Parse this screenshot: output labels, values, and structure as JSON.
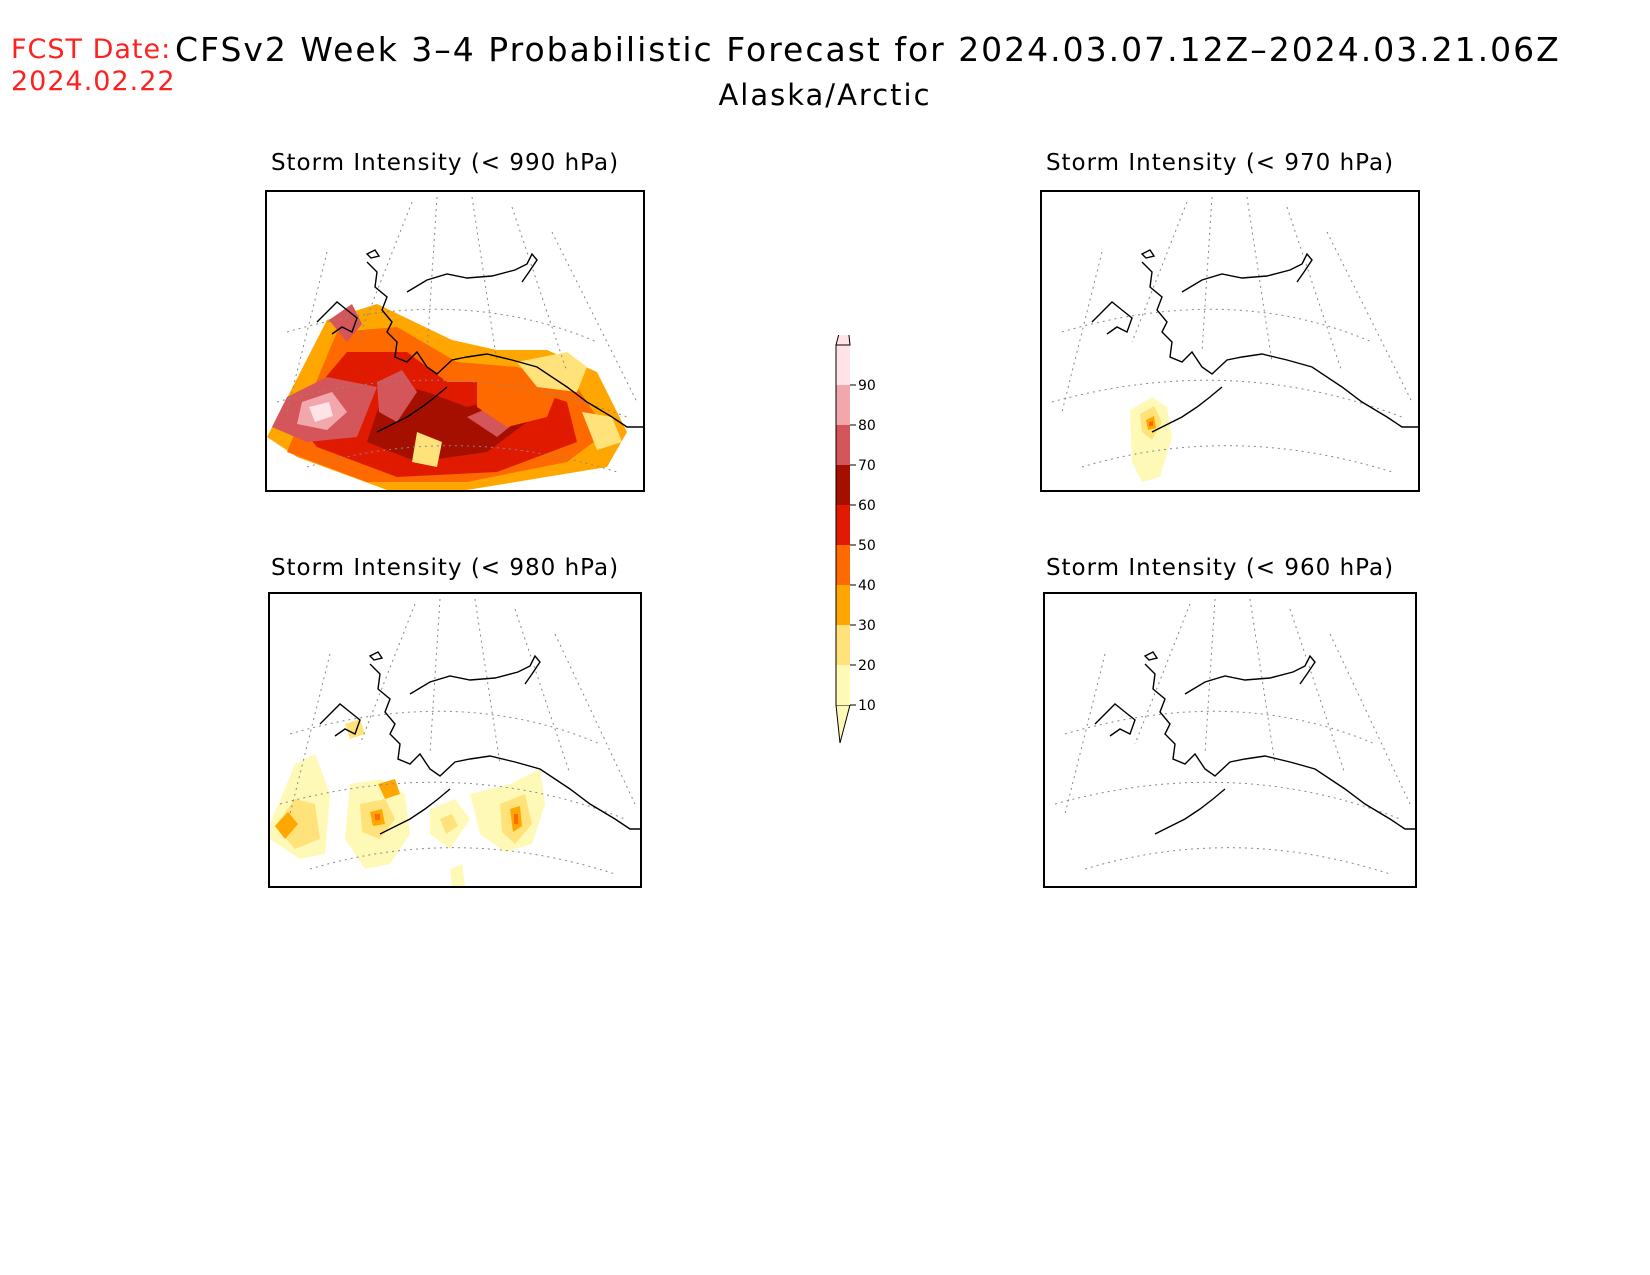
{
  "header": {
    "fcst_label": "FCST Date:",
    "fcst_date": "2024.02.22",
    "title": "CFSv2 Week 3–4 Probabilistic Forecast for 2024.03.07.12Z–2024.03.21.06Z",
    "region": "Alaska/Arctic"
  },
  "panels": [
    {
      "id": "p990",
      "title": "Storm Intensity (< 990 hPa)"
    },
    {
      "id": "p970",
      "title": "Storm Intensity (< 970 hPa)"
    },
    {
      "id": "p980",
      "title": "Storm Intensity (< 980 hPa)"
    },
    {
      "id": "p960",
      "title": "Storm Intensity (< 960 hPa)"
    }
  ],
  "colorbar": {
    "levels": [
      "10",
      "20",
      "30",
      "40",
      "50",
      "60",
      "70",
      "80",
      "90"
    ],
    "colors": [
      "#fff9b8",
      "#ffe27a",
      "#ffa600",
      "#ff6a00",
      "#e01a00",
      "#a50f00",
      "#d4555a",
      "#f2a7ad",
      "#ffe3e6"
    ]
  }
}
